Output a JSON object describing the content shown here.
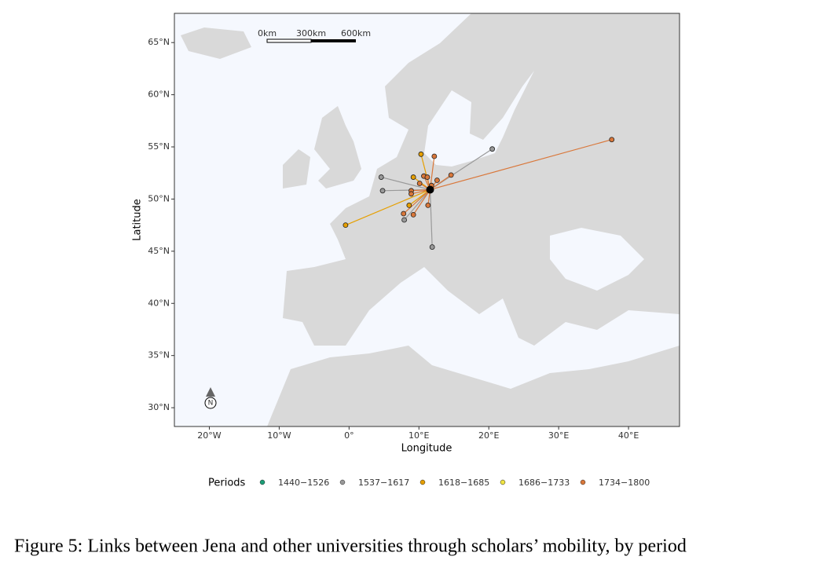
{
  "chart_data": {
    "type": "scatter",
    "x_label": "Longitude",
    "y_label": "Latitude",
    "xlim": [
      -25,
      47.3
    ],
    "ylim": [
      28.2,
      67.8
    ],
    "xticks": [
      {
        "value": -20,
        "label": "20°W"
      },
      {
        "value": -10,
        "label": "10°W"
      },
      {
        "value": 0,
        "label": "0°"
      },
      {
        "value": 10,
        "label": "10°E"
      },
      {
        "value": 20,
        "label": "20°E"
      },
      {
        "value": 30,
        "label": "30°E"
      },
      {
        "value": 40,
        "label": "40°E"
      }
    ],
    "yticks": [
      {
        "value": 30,
        "label": "30°N"
      },
      {
        "value": 35,
        "label": "35°N"
      },
      {
        "value": 40,
        "label": "40°N"
      },
      {
        "value": 45,
        "label": "45°N"
      },
      {
        "value": 50,
        "label": "50°N"
      },
      {
        "value": 55,
        "label": "55°N"
      },
      {
        "value": 60,
        "label": "60°N"
      },
      {
        "value": 65,
        "label": "65°N"
      }
    ],
    "hub": {
      "x": 11.6,
      "y": 50.9,
      "color": "#000000"
    },
    "legend_title": "Periods",
    "series": [
      {
        "name": "1440−1526",
        "color": "#1b9e77",
        "x": [],
        "y": []
      },
      {
        "name": "1537−1617",
        "color": "#999999",
        "x": [
          20.5,
          4.6,
          4.8,
          7.9,
          11.9
        ],
        "y": [
          54.8,
          52.1,
          50.8,
          48.0,
          45.4
        ]
      },
      {
        "name": "1618−1685",
        "color": "#e69f00",
        "x": [
          -0.5,
          10.3,
          9.2,
          8.6
        ],
        "y": [
          47.5,
          54.3,
          52.1,
          49.4
        ]
      },
      {
        "name": "1686−1733",
        "color": "#f0e442",
        "x": [],
        "y": []
      },
      {
        "name": "1734−1800",
        "color": "#d9773a",
        "x": [
          37.6,
          12.2,
          14.6,
          10.7,
          11.2,
          12.6,
          10.1,
          11.8,
          8.9,
          8.9,
          7.8,
          9.2,
          11.3
        ],
        "y": [
          55.7,
          54.1,
          52.3,
          52.2,
          52.1,
          51.8,
          51.5,
          51.3,
          50.8,
          50.5,
          48.6,
          48.5,
          49.4
        ]
      }
    ],
    "scale_bar": [
      "0km",
      "300km",
      "600km"
    ],
    "north_label": "N"
  },
  "caption": "Figure 5: Links between Jena and other universities through scholars’ mobility, by period"
}
